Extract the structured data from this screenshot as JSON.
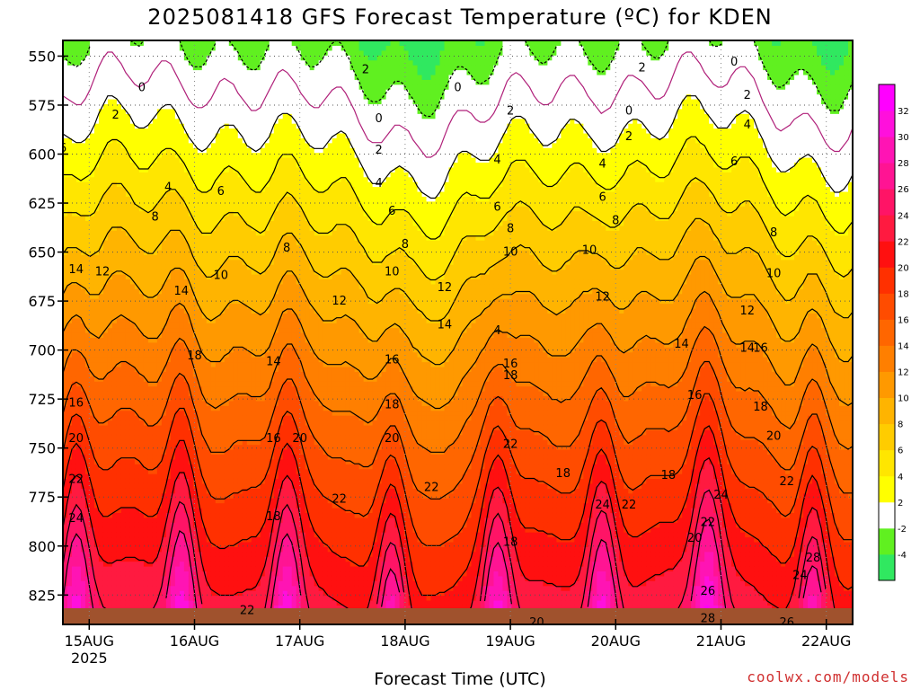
{
  "chart_data": {
    "type": "heatmap",
    "title": "2025081418 GFS Forecast Temperature (ºC) for KDEN",
    "xlabel": "Forecast Time (UTC)",
    "ylabel": "",
    "credit": "coolwx.com/models",
    "y_scale": "pressure (hPa), decreasing upward",
    "ylim": [
      840,
      542
    ],
    "y_ticks": [
      {
        "value": 550,
        "label": "550"
      },
      {
        "value": 575,
        "label": "575"
      },
      {
        "value": 600,
        "label": "600"
      },
      {
        "value": 625,
        "label": "625"
      },
      {
        "value": 650,
        "label": "650"
      },
      {
        "value": 675,
        "label": "675"
      },
      {
        "value": 700,
        "label": "700"
      },
      {
        "value": 725,
        "label": "725"
      },
      {
        "value": 750,
        "label": "750"
      },
      {
        "value": 775,
        "label": "775"
      },
      {
        "value": 800,
        "label": "800"
      },
      {
        "value": 825,
        "label": "825"
      }
    ],
    "xlim": [
      "2025-08-14T18:00Z",
      "2025-08-22T06:00Z"
    ],
    "x_ticks": [
      {
        "value": "2025-08-15T00:00Z",
        "label": "15AUG",
        "sublabel": "2025"
      },
      {
        "value": "2025-08-16T00:00Z",
        "label": "16AUG",
        "sublabel": ""
      },
      {
        "value": "2025-08-17T00:00Z",
        "label": "17AUG",
        "sublabel": ""
      },
      {
        "value": "2025-08-18T00:00Z",
        "label": "18AUG",
        "sublabel": ""
      },
      {
        "value": "2025-08-19T00:00Z",
        "label": "19AUG",
        "sublabel": ""
      },
      {
        "value": "2025-08-20T00:00Z",
        "label": "20AUG",
        "sublabel": ""
      },
      {
        "value": "2025-08-21T00:00Z",
        "label": "21AUG",
        "sublabel": ""
      },
      {
        "value": "2025-08-22T00:00Z",
        "label": "22AUG",
        "sublabel": ""
      }
    ],
    "grid": true,
    "ground_color": "#a0522d",
    "colorbar": {
      "placement": "right",
      "bands": [
        {
          "min": -6,
          "max": -4,
          "color": "#30e860"
        },
        {
          "min": -4,
          "max": -2,
          "color": "#60f020"
        },
        {
          "min": -2,
          "max": 2,
          "color": "#ffffff"
        },
        {
          "min": 2,
          "max": 4,
          "color": "#ffff00"
        },
        {
          "min": 4,
          "max": 6,
          "color": "#ffe600"
        },
        {
          "min": 6,
          "max": 8,
          "color": "#ffcc00"
        },
        {
          "min": 8,
          "max": 10,
          "color": "#ffb400"
        },
        {
          "min": 10,
          "max": 12,
          "color": "#ff9900"
        },
        {
          "min": 12,
          "max": 14,
          "color": "#ff7f00"
        },
        {
          "min": 14,
          "max": 16,
          "color": "#ff6600"
        },
        {
          "min": 16,
          "max": 18,
          "color": "#ff4c00"
        },
        {
          "min": 18,
          "max": 20,
          "color": "#ff3000"
        },
        {
          "min": 20,
          "max": 22,
          "color": "#ff1010"
        },
        {
          "min": 22,
          "max": 24,
          "color": "#ff1a40"
        },
        {
          "min": 24,
          "max": 26,
          "color": "#ff1466"
        },
        {
          "min": 26,
          "max": 28,
          "color": "#ff1493"
        },
        {
          "min": 28,
          "max": 30,
          "color": "#ff14b4"
        },
        {
          "min": 30,
          "max": 32,
          "color": "#ff10dc"
        },
        {
          "min": 32,
          "max": 34,
          "color": "#ff00ff"
        }
      ],
      "labels": [
        "-4",
        "-2",
        "2",
        "4",
        "6",
        "8",
        "10",
        "12",
        "14",
        "16",
        "18",
        "20",
        "22",
        "24",
        "26",
        "28",
        "30",
        "32"
      ]
    },
    "contour_levels": [
      -2,
      0,
      2,
      4,
      6,
      8,
      10,
      12,
      14,
      16,
      18,
      20,
      22,
      24,
      26
    ],
    "contour_labels": [
      {
        "t": "2025-08-15T12:00Z",
        "p": 566,
        "label": "0"
      },
      {
        "t": "2025-08-17T18:00Z",
        "p": 582,
        "label": "0"
      },
      {
        "t": "2025-08-18T12:00Z",
        "p": 566,
        "label": "0"
      },
      {
        "t": "2025-08-20T03:00Z",
        "p": 578,
        "label": "0"
      },
      {
        "t": "2025-08-21T03:00Z",
        "p": 553,
        "label": "0"
      },
      {
        "t": "2025-08-17T15:00Z",
        "p": 557,
        "label": "2"
      },
      {
        "t": "2025-08-15T06:00Z",
        "p": 580,
        "label": "2"
      },
      {
        "t": "2025-08-17T18:00Z",
        "p": 598,
        "label": "2"
      },
      {
        "t": "2025-08-19T00:00Z",
        "p": 578,
        "label": "2"
      },
      {
        "t": "2025-08-20T03:00Z",
        "p": 591,
        "label": "2"
      },
      {
        "t": "2025-08-20T06:00Z",
        "p": 556,
        "label": "2"
      },
      {
        "t": "2025-08-21T06:00Z",
        "p": 570,
        "label": "2"
      },
      {
        "t": "2025-08-15T18:00Z",
        "p": 617,
        "label": "4"
      },
      {
        "t": "2025-08-17T18:00Z",
        "p": 615,
        "label": "4"
      },
      {
        "t": "2025-08-18T21:00Z",
        "p": 603,
        "label": "4"
      },
      {
        "t": "2025-08-19T21:00Z",
        "p": 605,
        "label": "4"
      },
      {
        "t": "2025-08-21T06:00Z",
        "p": 585,
        "label": "4"
      },
      {
        "t": "2025-08-18T21:00Z",
        "p": 690,
        "label": "4"
      },
      {
        "t": "2025-08-14T18:00Z",
        "p": 597,
        "label": "6"
      },
      {
        "t": "2025-08-16T06:00Z",
        "p": 619,
        "label": "6"
      },
      {
        "t": "2025-08-17T21:00Z",
        "p": 629,
        "label": "6"
      },
      {
        "t": "2025-08-18T21:00Z",
        "p": 627,
        "label": "6"
      },
      {
        "t": "2025-08-19T21:00Z",
        "p": 622,
        "label": "6"
      },
      {
        "t": "2025-08-21T03:00Z",
        "p": 604,
        "label": "6"
      },
      {
        "t": "2025-08-15T15:00Z",
        "p": 632,
        "label": "8"
      },
      {
        "t": "2025-08-16T21:00Z",
        "p": 648,
        "label": "8"
      },
      {
        "t": "2025-08-18T00:00Z",
        "p": 646,
        "label": "8"
      },
      {
        "t": "2025-08-19T00:00Z",
        "p": 638,
        "label": "8"
      },
      {
        "t": "2025-08-20T00:00Z",
        "p": 634,
        "label": "8"
      },
      {
        "t": "2025-08-21T12:00Z",
        "p": 640,
        "label": "8"
      },
      {
        "t": "2025-08-16T06:00Z",
        "p": 662,
        "label": "10"
      },
      {
        "t": "2025-08-17T21:00Z",
        "p": 660,
        "label": "10"
      },
      {
        "t": "2025-08-19T00:00Z",
        "p": 650,
        "label": "10"
      },
      {
        "t": "2025-08-19T18:00Z",
        "p": 649,
        "label": "10"
      },
      {
        "t": "2025-08-21T12:00Z",
        "p": 661,
        "label": "10"
      },
      {
        "t": "2025-08-15T03:00Z",
        "p": 660,
        "label": "12"
      },
      {
        "t": "2025-08-17T09:00Z",
        "p": 675,
        "label": "12"
      },
      {
        "t": "2025-08-18T09:00Z",
        "p": 668,
        "label": "12"
      },
      {
        "t": "2025-08-19T21:00Z",
        "p": 673,
        "label": "12"
      },
      {
        "t": "2025-08-21T06:00Z",
        "p": 680,
        "label": "12"
      },
      {
        "t": "2025-08-14T21:00Z",
        "p": 659,
        "label": "14"
      },
      {
        "t": "2025-08-15T21:00Z",
        "p": 670,
        "label": "14"
      },
      {
        "t": "2025-08-16T18:00Z",
        "p": 706,
        "label": "14"
      },
      {
        "t": "2025-08-18T09:00Z",
        "p": 687,
        "label": "14"
      },
      {
        "t": "2025-08-20T15:00Z",
        "p": 697,
        "label": "14"
      },
      {
        "t": "2025-08-21T06:00Z",
        "p": 699,
        "label": "14"
      },
      {
        "t": "2025-08-14T21:00Z",
        "p": 727,
        "label": "16"
      },
      {
        "t": "2025-08-16T18:00Z",
        "p": 745,
        "label": "16"
      },
      {
        "t": "2025-08-17T21:00Z",
        "p": 705,
        "label": "16"
      },
      {
        "t": "2025-08-19T00:00Z",
        "p": 707,
        "label": "16"
      },
      {
        "t": "2025-08-20T18:00Z",
        "p": 723,
        "label": "16"
      },
      {
        "t": "2025-08-21T09:00Z",
        "p": 699,
        "label": "16"
      },
      {
        "t": "2025-08-16T00:00Z",
        "p": 703,
        "label": "18"
      },
      {
        "t": "2025-08-16T18:00Z",
        "p": 785,
        "label": "18"
      },
      {
        "t": "2025-08-17T21:00Z",
        "p": 728,
        "label": "18"
      },
      {
        "t": "2025-08-19T00:00Z",
        "p": 713,
        "label": "18"
      },
      {
        "t": "2025-08-19T12:00Z",
        "p": 763,
        "label": "18"
      },
      {
        "t": "2025-08-19T00:00Z",
        "p": 798,
        "label": "18"
      },
      {
        "t": "2025-08-20T12:00Z",
        "p": 764,
        "label": "18"
      },
      {
        "t": "2025-08-21T09:00Z",
        "p": 729,
        "label": "18"
      },
      {
        "t": "2025-08-14T21:00Z",
        "p": 745,
        "label": "20"
      },
      {
        "t": "2025-08-17T00:00Z",
        "p": 745,
        "label": "20"
      },
      {
        "t": "2025-08-17T21:00Z",
        "p": 745,
        "label": "20"
      },
      {
        "t": "2025-08-20T18:00Z",
        "p": 796,
        "label": "20"
      },
      {
        "t": "2025-08-21T12:00Z",
        "p": 744,
        "label": "20"
      },
      {
        "t": "2025-08-14T21:00Z",
        "p": 766,
        "label": "22"
      },
      {
        "t": "2025-08-16T12:00Z",
        "p": 833,
        "label": "22"
      },
      {
        "t": "2025-08-17T09:00Z",
        "p": 776,
        "label": "22"
      },
      {
        "t": "2025-08-18T06:00Z",
        "p": 770,
        "label": "22"
      },
      {
        "t": "2025-08-19T00:00Z",
        "p": 748,
        "label": "22"
      },
      {
        "t": "2025-08-20T03:00Z",
        "p": 779,
        "label": "22"
      },
      {
        "t": "2025-08-20T21:00Z",
        "p": 788,
        "label": "22"
      },
      {
        "t": "2025-08-21T15:00Z",
        "p": 767,
        "label": "22"
      },
      {
        "t": "2025-08-14T21:00Z",
        "p": 786,
        "label": "24"
      },
      {
        "t": "2025-08-19T21:00Z",
        "p": 779,
        "label": "24"
      },
      {
        "t": "2025-08-21T00:00Z",
        "p": 774,
        "label": "24"
      },
      {
        "t": "2025-08-21T18:00Z",
        "p": 815,
        "label": "24"
      },
      {
        "t": "2025-08-20T21:00Z",
        "p": 823,
        "label": "26"
      },
      {
        "t": "2025-08-21T15:00Z",
        "p": 839,
        "label": "26"
      },
      {
        "t": "2025-08-20T21:00Z",
        "p": 837,
        "label": "28"
      },
      {
        "t": "2025-08-21T21:00Z",
        "p": 806,
        "label": "28"
      },
      {
        "t": "2025-08-19T06:00Z",
        "p": 839,
        "label": "20"
      }
    ]
  }
}
